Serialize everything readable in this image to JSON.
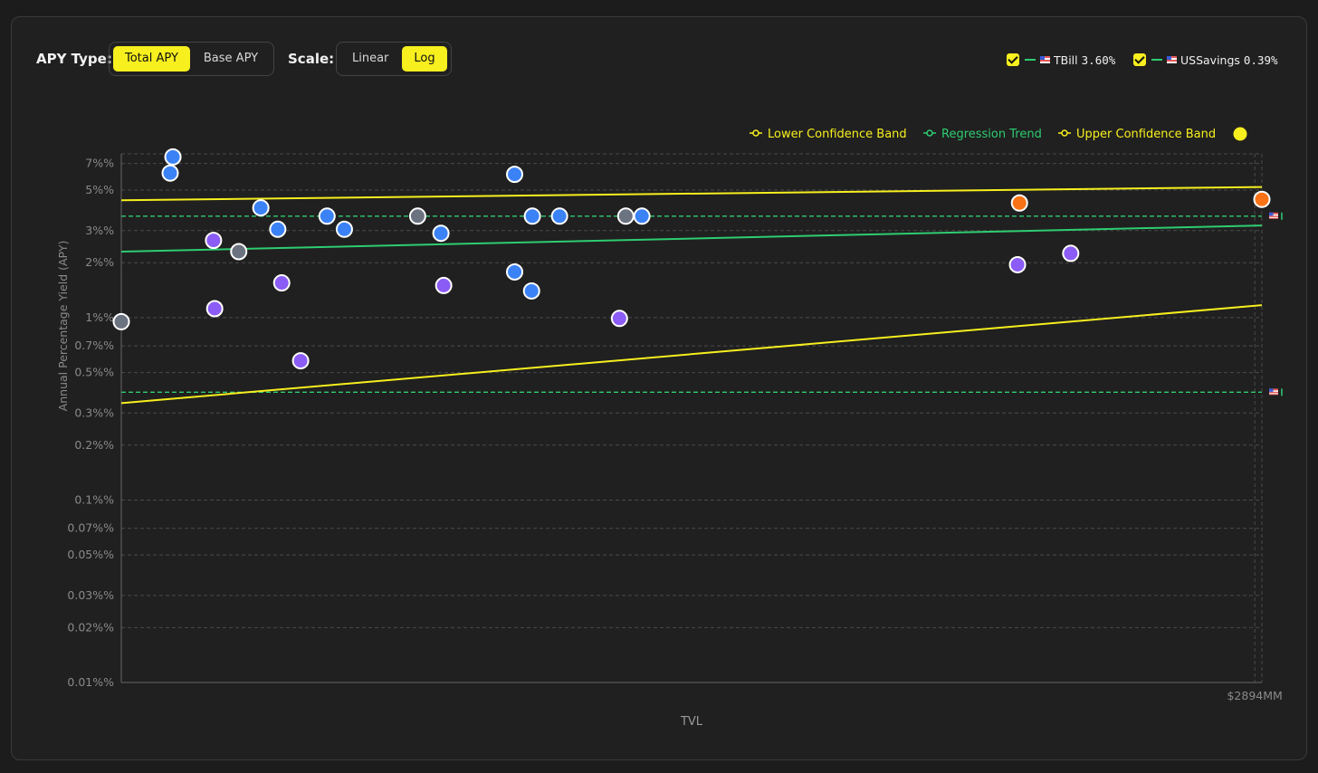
{
  "controls": {
    "apy_type_label": "APY Type:",
    "apy_options": [
      "Total APY",
      "Base APY"
    ],
    "apy_active": 0,
    "scale_label": "Scale:",
    "scale_options": [
      "Linear",
      "Log"
    ],
    "scale_active": 1
  },
  "benchmarks": [
    {
      "name": "TBill",
      "value": "3.60%",
      "checked": true
    },
    {
      "name": "USSavings",
      "value": "0.39%",
      "checked": true
    }
  ],
  "colors": {
    "accent": "#f7ef1e",
    "green": "#2ecc71",
    "blue": "#3b82f6",
    "purple": "#8b5cf6",
    "gray": "#6b7280",
    "orange": "#f97316"
  },
  "chart_data": {
    "type": "scatter",
    "title": "",
    "xlabel": "TVL",
    "ylabel": "Annual Percentage Yield (APY)",
    "y_scale": "log",
    "ylim": [
      0.01,
      7.9
    ],
    "xlim": [
      0,
      2894
    ],
    "x_tick_labels": [
      "$2894MM"
    ],
    "x_ticks": [
      2876
    ],
    "y_ticks": [
      7,
      5,
      3,
      2,
      1,
      0.7,
      0.5,
      0.3,
      0.2,
      0.1,
      0.07,
      0.05,
      0.03,
      0.02,
      0.01
    ],
    "y_tick_labels": [
      "7%%",
      "5%%",
      "3%%",
      "2%%",
      "1%%",
      "0.7%%",
      "0.5%%",
      "0.3%%",
      "0.2%%",
      "0.1%%",
      "0.07%%",
      "0.05%%",
      "0.03%%",
      "0.02%%",
      "0.01%%"
    ],
    "grid": true,
    "legend": {
      "placement": "top-right",
      "entries": [
        {
          "name": "Lower Confidence Band",
          "color": "#f7ef1e"
        },
        {
          "name": "Regression Trend",
          "color": "#2ecc71"
        },
        {
          "name": "Upper Confidence Band",
          "color": "#f7ef1e"
        }
      ]
    },
    "lines": [
      {
        "name": "Upper Confidence Band",
        "color": "#f7ef1e",
        "points": [
          [
            0,
            4.4
          ],
          [
            2894,
            5.2
          ]
        ]
      },
      {
        "name": "Regression Trend",
        "color": "#2ecc71",
        "points": [
          [
            0,
            2.3
          ],
          [
            2894,
            3.2
          ]
        ]
      },
      {
        "name": "Lower Confidence Band",
        "color": "#f7ef1e",
        "points": [
          [
            0,
            0.34
          ],
          [
            2894,
            1.17
          ]
        ]
      }
    ],
    "reference_lines": [
      {
        "name": "TBill",
        "value": 3.6,
        "color": "#2ecc71"
      },
      {
        "name": "USSavings",
        "value": 0.39,
        "color": "#2ecc71"
      }
    ],
    "points": [
      {
        "x": 0,
        "y": 0.95,
        "group": "gray"
      },
      {
        "x": 131,
        "y": 7.6,
        "group": "blue"
      },
      {
        "x": 124,
        "y": 6.2,
        "group": "blue"
      },
      {
        "x": 234,
        "y": 2.65,
        "group": "purple"
      },
      {
        "x": 237,
        "y": 1.12,
        "group": "purple"
      },
      {
        "x": 298,
        "y": 2.3,
        "group": "gray"
      },
      {
        "x": 354,
        "y": 4.0,
        "group": "blue"
      },
      {
        "x": 397,
        "y": 3.05,
        "group": "blue"
      },
      {
        "x": 407,
        "y": 1.55,
        "group": "purple"
      },
      {
        "x": 455,
        "y": 0.58,
        "group": "purple"
      },
      {
        "x": 522,
        "y": 3.6,
        "group": "blue"
      },
      {
        "x": 566,
        "y": 3.05,
        "group": "blue"
      },
      {
        "x": 752,
        "y": 3.6,
        "group": "gray"
      },
      {
        "x": 811,
        "y": 2.9,
        "group": "blue"
      },
      {
        "x": 818,
        "y": 1.5,
        "group": "purple"
      },
      {
        "x": 998,
        "y": 6.1,
        "group": "blue"
      },
      {
        "x": 998,
        "y": 1.78,
        "group": "blue"
      },
      {
        "x": 1043,
        "y": 3.6,
        "group": "blue"
      },
      {
        "x": 1041,
        "y": 1.4,
        "group": "blue"
      },
      {
        "x": 1112,
        "y": 3.6,
        "group": "blue"
      },
      {
        "x": 1264,
        "y": 0.99,
        "group": "purple"
      },
      {
        "x": 1280,
        "y": 3.6,
        "group": "gray"
      },
      {
        "x": 1321,
        "y": 3.6,
        "group": "blue"
      },
      {
        "x": 2274,
        "y": 1.95,
        "group": "purple"
      },
      {
        "x": 2279,
        "y": 4.25,
        "group": "orange"
      },
      {
        "x": 2409,
        "y": 2.25,
        "group": "purple"
      },
      {
        "x": 2894,
        "y": 4.45,
        "group": "orange"
      }
    ]
  }
}
